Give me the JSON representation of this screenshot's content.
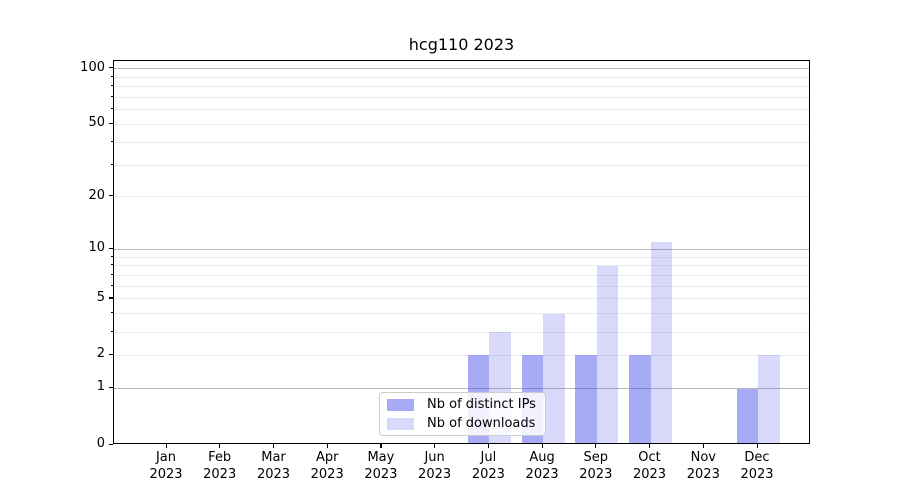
{
  "title": "hcg110 2023",
  "chart_data": {
    "type": "bar",
    "title": "hcg110 2023",
    "categories": [
      "Jan",
      "Feb",
      "Mar",
      "Apr",
      "May",
      "Jun",
      "Jul",
      "Aug",
      "Sep",
      "Oct",
      "Nov",
      "Dec"
    ],
    "category_year": "2023",
    "xlabel": "",
    "ylabel": "",
    "scale": "log1p",
    "ylim": [
      0,
      110
    ],
    "ytick_labels": [
      0,
      1,
      2,
      5,
      10,
      20,
      50,
      100
    ],
    "ygrid_major": [
      1,
      10,
      100
    ],
    "ygrid_minor": [
      2,
      3,
      4,
      5,
      6,
      7,
      8,
      9,
      20,
      30,
      40,
      50,
      60,
      70,
      80,
      90
    ],
    "grid": true,
    "legend_position": "lower center",
    "series": [
      {
        "name": "Nb of distinct IPs",
        "color": "rgba(80, 85, 235, 0.5)",
        "values": [
          0,
          0,
          0,
          0,
          0,
          0,
          2,
          2,
          2,
          2,
          0,
          1
        ]
      },
      {
        "name": "Nb of downloads",
        "color": "rgba(80, 85, 235, 0.22)",
        "values": [
          0,
          0,
          0,
          0,
          0,
          0,
          3,
          4,
          8,
          11,
          0,
          2
        ]
      }
    ]
  }
}
